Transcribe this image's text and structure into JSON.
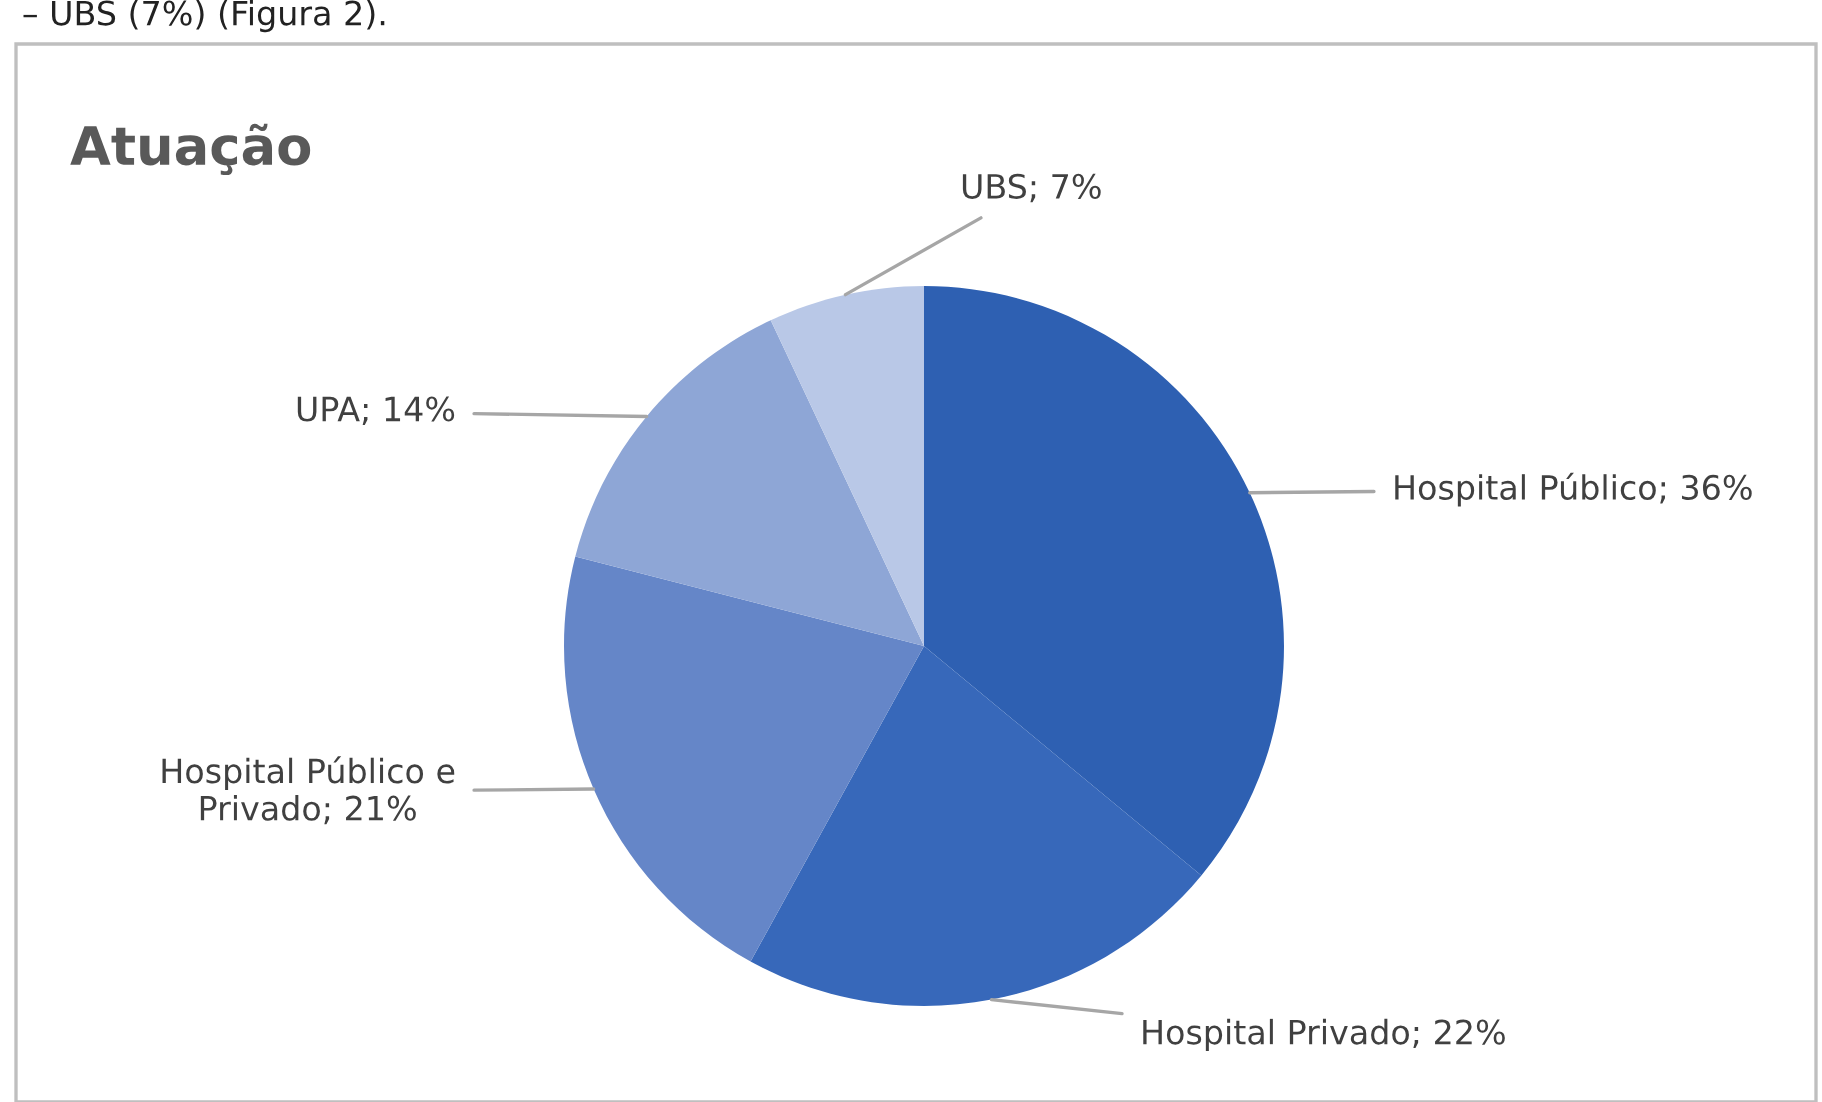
{
  "chart_data": {
    "type": "pie",
    "title": "Atuação",
    "categories": [
      "Hospital Público",
      "Hospital Privado",
      "Hospital Público e Privado",
      "UPA",
      "UBS"
    ],
    "value_labels": [
      "36%",
      "22%",
      "21%",
      "14%",
      "7%"
    ],
    "values": [
      36,
      22,
      21,
      14,
      7
    ],
    "colors": [
      "#2e60b2",
      "#3768ba",
      "#6586c8",
      "#8ea6d6",
      "#b9c8e7"
    ],
    "annotations": [
      "– UBS (7%) (Figura 2)."
    ]
  }
}
